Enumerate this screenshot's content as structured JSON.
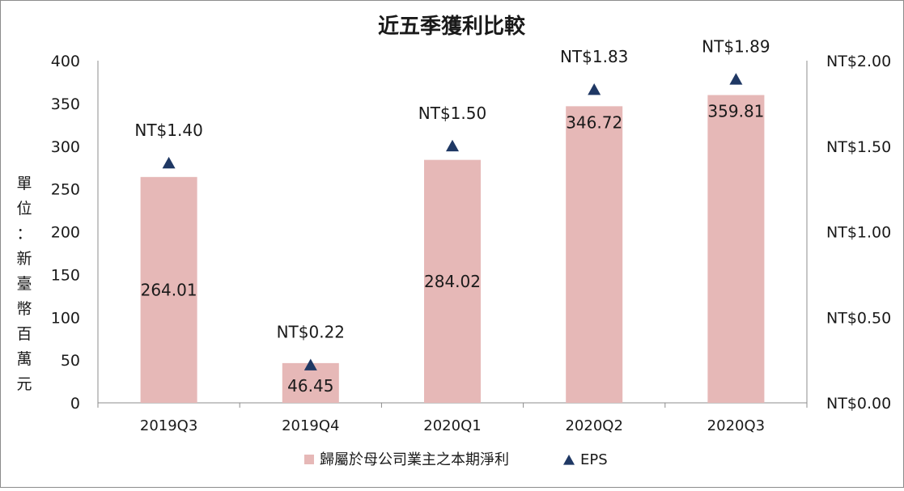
{
  "chart_data": {
    "type": "bar+scatter",
    "title": "近五季獲利比較",
    "ylabel": "單位：新臺幣百萬元",
    "ylim": [
      0,
      400
    ],
    "y_ticks": [
      "0",
      "50",
      "100",
      "150",
      "200",
      "250",
      "300",
      "350",
      "400"
    ],
    "y2lim": [
      0,
      2.0
    ],
    "y2_ticks": [
      "NT$0.00",
      "NT$0.50",
      "NT$1.00",
      "NT$1.50",
      "NT$2.00"
    ],
    "categories": [
      "2019Q3",
      "2019Q4",
      "2020Q1",
      "2020Q2",
      "2020Q3"
    ],
    "series": [
      {
        "name": "歸屬於母公司業主之本期淨利",
        "type": "bar",
        "axis": "left",
        "color": "#e6b8b7",
        "values": [
          264.01,
          46.45,
          284.02,
          346.72,
          359.81
        ],
        "labels": [
          "264.01",
          "46.45",
          "284.02",
          "346.72",
          "359.81"
        ]
      },
      {
        "name": "EPS",
        "type": "marker",
        "marker": "triangle",
        "axis": "right",
        "color": "#1f3864",
        "values": [
          1.4,
          0.22,
          1.5,
          1.83,
          1.89
        ],
        "labels": [
          "NT$1.40",
          "NT$0.22",
          "NT$1.50",
          "NT$1.83",
          "NT$1.89"
        ]
      }
    ],
    "legend_position": "bottom",
    "grid": false
  }
}
